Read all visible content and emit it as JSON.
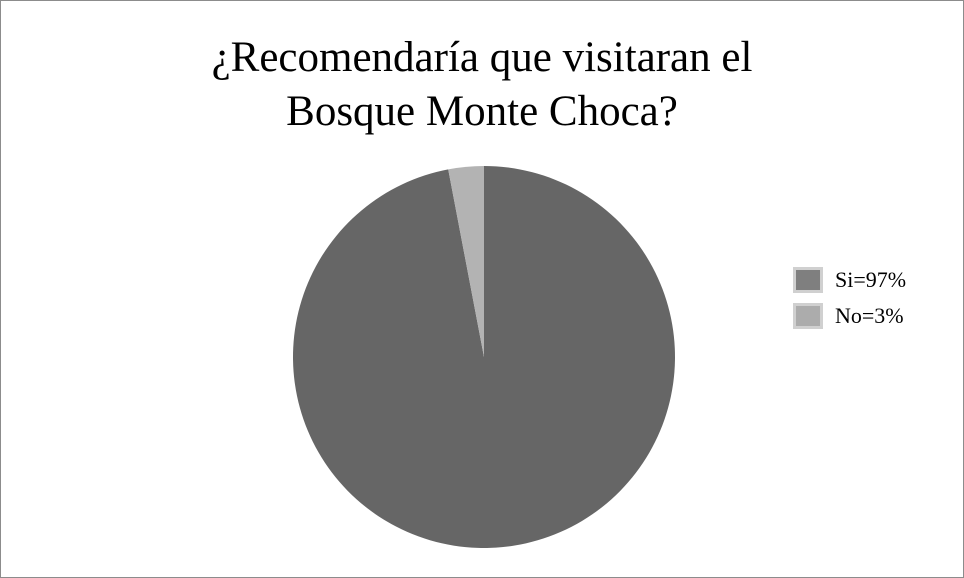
{
  "chart_data": {
    "type": "pie",
    "title_lines": [
      "¿Recomendaría que visitaran el",
      "Bosque Monte Choca?"
    ],
    "slices": [
      {
        "label": "Si=97%",
        "value": 97,
        "color": "#666666",
        "legend_color": "#7f7f7f"
      },
      {
        "label": "No=3%",
        "value": 3,
        "color": "#b3b3b3",
        "legend_color": "#acacac"
      }
    ],
    "legend_position": "right"
  }
}
